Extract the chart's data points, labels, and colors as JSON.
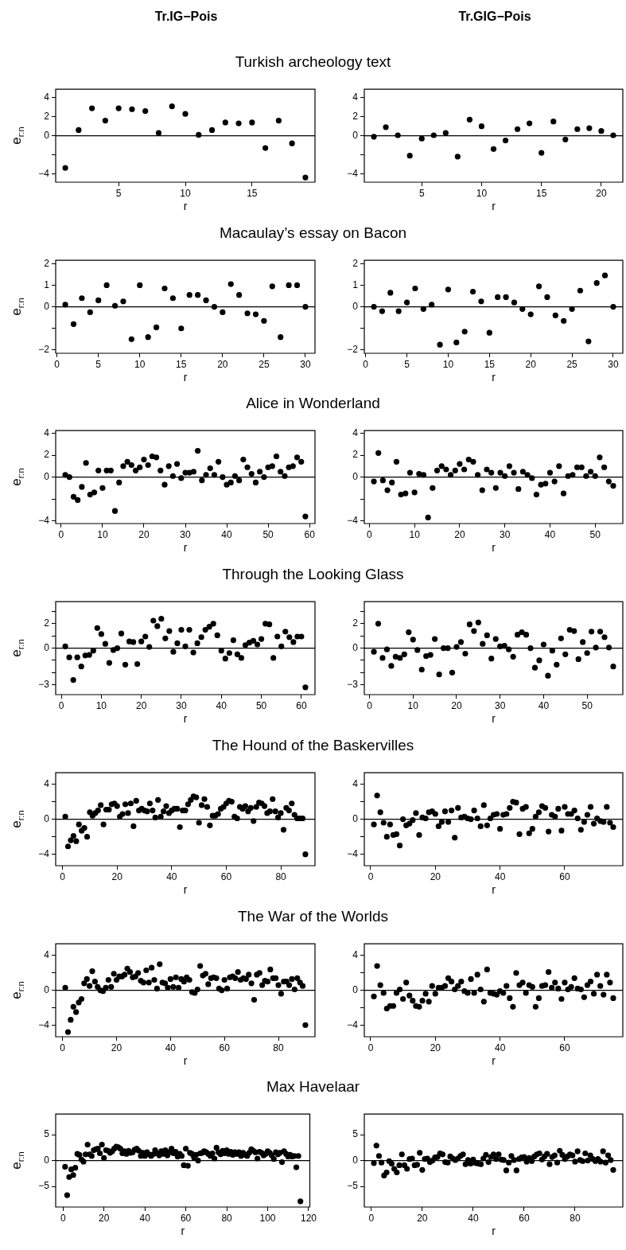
{
  "chart_data": [
    {
      "type": "scatter",
      "title": "Turkish archeology text",
      "subtitle": "Tr.IG−Pois",
      "xlabel": "r",
      "ylabel": "e$_{r:n}$",
      "color": "#000000",
      "marker": "circle",
      "xlim": [
        0.28,
        19.72
      ],
      "xticks": [
        5,
        10,
        15
      ],
      "ylim": [
        -4.9,
        4.9
      ],
      "yticks": [
        -4,
        {
          "value": -2,
          "label": null
        },
        0,
        2,
        4
      ],
      "ref_lines": [
        {
          "axis": "y",
          "value": 0
        }
      ],
      "x": [
        1,
        2,
        3,
        4,
        5,
        6,
        7,
        8,
        9,
        10,
        11,
        12,
        13,
        14,
        15,
        16,
        17,
        18,
        19
      ],
      "values": [
        -3.4,
        0.6,
        2.9,
        1.6,
        2.9,
        2.8,
        2.6,
        0.3,
        3.1,
        2.3,
        0.1,
        0.6,
        1.4,
        1.3,
        1.4,
        -1.3,
        1.6,
        -0.8,
        -4.4
      ]
    },
    {
      "type": "scatter",
      "subtitle": "Tr.GIG−Pois",
      "xlabel": "r",
      "color": "#000000",
      "marker": "circle",
      "xlim": [
        0.2,
        21.8
      ],
      "xticks": [
        5,
        10,
        15,
        20
      ],
      "ylim": [
        -4.9,
        4.9
      ],
      "yticks": [
        -4,
        {
          "value": -2,
          "label": null
        },
        0,
        2,
        4
      ],
      "ref_lines": [
        {
          "axis": "y",
          "value": 0
        }
      ],
      "x": [
        1,
        2,
        3,
        4,
        5,
        6,
        7,
        8,
        9,
        10,
        11,
        12,
        13,
        14,
        15,
        16,
        17,
        18,
        19,
        20,
        21
      ],
      "values": [
        -0.1,
        0.9,
        0.05,
        -2.1,
        -0.3,
        0.05,
        0.3,
        -2.2,
        1.7,
        1.0,
        -1.4,
        -0.5,
        0.7,
        1.3,
        -1.8,
        1.5,
        -0.4,
        0.7,
        0.8,
        0.5,
        0.05
      ]
    },
    {
      "type": "scatter",
      "title": "Macaulay’s essay on Bacon",
      "xlabel": "r",
      "ylabel": "e$_{r:n}$",
      "color": "#000000",
      "marker": "circle",
      "xlim": [
        -0.16,
        31.16
      ],
      "xticks": [
        0,
        5,
        10,
        15,
        20,
        25,
        30
      ],
      "ylim": [
        -2.15,
        2.15
      ],
      "yticks": [
        -2,
        {
          "value": -1,
          "label": null
        },
        0,
        1,
        2
      ],
      "ref_lines": [
        {
          "axis": "y",
          "value": 0
        }
      ],
      "x": [
        1,
        2,
        3,
        4,
        5,
        6,
        7,
        8,
        9,
        10,
        11,
        12,
        13,
        14,
        15,
        16,
        17,
        18,
        19,
        20,
        21,
        22,
        23,
        24,
        25,
        26,
        27,
        28,
        29,
        30
      ],
      "values": [
        0.1,
        -0.8,
        0.4,
        -0.25,
        0.3,
        1.0,
        0.05,
        0.25,
        -1.5,
        1.0,
        -1.4,
        -0.95,
        0.85,
        0.4,
        -1.0,
        0.55,
        0.55,
        0.3,
        0.0,
        -0.25,
        1.05,
        0.55,
        -0.3,
        -0.35,
        -0.65,
        0.95,
        -1.4,
        1.0,
        1.0,
        0.0
      ]
    },
    {
      "type": "scatter",
      "xlabel": "r",
      "color": "#000000",
      "marker": "circle",
      "xlim": [
        -0.16,
        31.16
      ],
      "xticks": [
        0,
        5,
        10,
        15,
        20,
        25,
        30
      ],
      "ylim": [
        -2.15,
        2.15
      ],
      "yticks": [
        -2,
        {
          "value": -1,
          "label": null
        },
        0,
        1,
        2
      ],
      "ref_lines": [
        {
          "axis": "y",
          "value": 0
        }
      ],
      "x": [
        1,
        2,
        3,
        4,
        5,
        6,
        7,
        8,
        9,
        10,
        11,
        12,
        13,
        14,
        15,
        16,
        17,
        18,
        19,
        20,
        21,
        22,
        23,
        24,
        25,
        26,
        27,
        28,
        29,
        30
      ],
      "values": [
        0.0,
        -0.2,
        0.65,
        -0.2,
        0.2,
        0.85,
        -0.1,
        0.1,
        -1.75,
        0.8,
        -1.65,
        -1.15,
        0.7,
        0.25,
        -1.2,
        0.45,
        0.45,
        0.2,
        -0.1,
        -0.35,
        0.95,
        0.45,
        -0.4,
        -0.65,
        -0.1,
        0.75,
        -1.6,
        1.1,
        1.45,
        0.0
      ]
    },
    {
      "type": "scatter",
      "title": "Alice in Wonderland",
      "xlabel": "r",
      "ylabel": "e$_{r:n}$",
      "color": "#000000",
      "marker": "circle",
      "xlim": [
        -1.32,
        61.32
      ],
      "xticks": [
        0,
        10,
        20,
        30,
        40,
        50,
        60
      ],
      "ylim": [
        -4.25,
        4.25
      ],
      "yticks": [
        -4,
        {
          "value": -2,
          "label": null
        },
        0,
        2,
        4
      ],
      "ref_lines": [
        {
          "axis": "y",
          "value": 0
        }
      ],
      "x": [
        1,
        2,
        3,
        4,
        5,
        6,
        7,
        8,
        9,
        10,
        11,
        12,
        13,
        14,
        15,
        16,
        17,
        18,
        19,
        20,
        21,
        22,
        23,
        24,
        25,
        26,
        27,
        28,
        29,
        30,
        31,
        32,
        33,
        34,
        35,
        36,
        37,
        38,
        39,
        40,
        41,
        42,
        43,
        44,
        45,
        46,
        47,
        48,
        49,
        50,
        51,
        52,
        53,
        54,
        55,
        56,
        57,
        58,
        59
      ],
      "values": [
        0.2,
        0.0,
        -1.8,
        -2.1,
        -0.9,
        1.3,
        -1.6,
        -1.4,
        0.6,
        -1.0,
        0.6,
        0.6,
        -3.1,
        -0.5,
        1.0,
        1.4,
        1.1,
        0.6,
        0.9,
        1.6,
        1.1,
        1.9,
        1.8,
        0.6,
        -0.7,
        1.0,
        0.1,
        1.2,
        -0.1,
        0.4,
        0.4,
        0.5,
        2.4,
        -0.3,
        0.2,
        0.8,
        0.2,
        1.4,
        0.0,
        -0.7,
        -0.5,
        0.1,
        -0.3,
        1.6,
        0.9,
        0.3,
        -0.5,
        0.5,
        0.0,
        0.9,
        1.0,
        1.9,
        0.5,
        0.1,
        0.9,
        1.0,
        1.8,
        1.4,
        -3.6
      ]
    },
    {
      "type": "scatter",
      "xlabel": "r",
      "color": "#000000",
      "marker": "circle",
      "xlim": [
        -1.12,
        56.12
      ],
      "xticks": [
        0,
        10,
        20,
        30,
        40,
        50
      ],
      "ylim": [
        -4.25,
        4.25
      ],
      "yticks": [
        -4,
        {
          "value": -2,
          "label": null
        },
        0,
        2,
        4
      ],
      "ref_lines": [
        {
          "axis": "y",
          "value": 0
        }
      ],
      "x": [
        1,
        2,
        3,
        4,
        5,
        6,
        7,
        8,
        9,
        10,
        11,
        12,
        13,
        14,
        15,
        16,
        17,
        18,
        19,
        20,
        21,
        22,
        23,
        24,
        25,
        26,
        27,
        28,
        29,
        30,
        31,
        32,
        33,
        34,
        35,
        36,
        37,
        38,
        39,
        40,
        41,
        42,
        43,
        44,
        45,
        46,
        47,
        48,
        49,
        50,
        51,
        52,
        53,
        54
      ],
      "values": [
        -0.4,
        2.2,
        -0.3,
        -1.2,
        -0.5,
        1.4,
        -1.6,
        -1.5,
        0.4,
        -1.4,
        0.3,
        0.2,
        -3.7,
        -1.0,
        0.6,
        1.0,
        0.7,
        0.2,
        0.6,
        1.2,
        0.7,
        1.6,
        1.4,
        0.2,
        -1.2,
        0.7,
        0.4,
        -1.0,
        0.4,
        0.1,
        1.0,
        0.4,
        -1.1,
        0.5,
        0.2,
        -0.1,
        -1.6,
        -0.7,
        -0.6,
        0.4,
        -0.4,
        1.0,
        -1.5,
        0.1,
        0.2,
        0.9,
        0.9,
        0.1,
        0.5,
        0.1,
        1.8,
        0.9,
        -0.4,
        -0.8
      ]
    },
    {
      "type": "scatter",
      "title": "Through the Looking Glass",
      "xlabel": "r",
      "ylabel": "e$_{r:n}$",
      "color": "#000000",
      "marker": "circle",
      "xlim": [
        -1.4,
        63.4
      ],
      "xticks": [
        0,
        10,
        20,
        30,
        40,
        50,
        60
      ],
      "ylim": [
        -3.8,
        3.8
      ],
      "yticks": [
        -3,
        {
          "value": -2,
          "label": null
        },
        {
          "value": -1,
          "label": null
        },
        0,
        {
          "value": 1,
          "label": null
        },
        2,
        {
          "value": 3,
          "label": null
        }
      ],
      "ref_lines": [
        {
          "axis": "y",
          "value": 0
        }
      ],
      "x": [
        1,
        2,
        3,
        4,
        5,
        6,
        7,
        8,
        9,
        10,
        11,
        12,
        13,
        14,
        15,
        16,
        17,
        18,
        19,
        20,
        21,
        22,
        23,
        24,
        25,
        26,
        27,
        28,
        29,
        30,
        31,
        32,
        33,
        34,
        35,
        36,
        37,
        38,
        39,
        40,
        41,
        42,
        43,
        44,
        45,
        46,
        47,
        48,
        49,
        50,
        51,
        52,
        53,
        54,
        55,
        56,
        57,
        58,
        59,
        60,
        61
      ],
      "values": [
        0.15,
        -0.75,
        -2.6,
        -0.75,
        -1.5,
        -0.6,
        -0.55,
        -0.2,
        1.65,
        1.15,
        0.35,
        -1.2,
        -0.15,
        0.0,
        1.2,
        -1.35,
        0.55,
        0.5,
        -1.3,
        0.55,
        0.95,
        0.1,
        2.25,
        1.8,
        2.4,
        0.8,
        1.4,
        -0.3,
        0.4,
        1.5,
        0.15,
        1.5,
        -0.35,
        0.4,
        0.9,
        1.5,
        1.75,
        2.0,
        1.05,
        -0.2,
        -0.85,
        -0.4,
        0.65,
        -0.5,
        -0.8,
        0.25,
        0.45,
        0.6,
        0.3,
        0.75,
        2.0,
        1.95,
        -0.8,
        0.95,
        0.15,
        1.35,
        0.9,
        0.5,
        0.95,
        0.95,
        -3.2
      ]
    },
    {
      "type": "scatter",
      "xlabel": "r",
      "color": "#000000",
      "marker": "circle",
      "xlim": [
        -1.2,
        58.2
      ],
      "xticks": [
        0,
        10,
        20,
        30,
        40,
        50
      ],
      "ylim": [
        -3.8,
        3.8
      ],
      "yticks": [
        -3,
        {
          "value": -2,
          "label": null
        },
        {
          "value": -1,
          "label": null
        },
        0,
        {
          "value": 1,
          "label": null
        },
        2,
        {
          "value": 3,
          "label": null
        }
      ],
      "ref_lines": [
        {
          "axis": "y",
          "value": 0
        }
      ],
      "x": [
        1,
        2,
        3,
        4,
        5,
        6,
        7,
        8,
        9,
        10,
        11,
        12,
        13,
        14,
        15,
        16,
        17,
        18,
        19,
        20,
        21,
        22,
        23,
        24,
        25,
        26,
        27,
        28,
        29,
        30,
        31,
        32,
        33,
        34,
        35,
        36,
        37,
        38,
        39,
        40,
        41,
        42,
        43,
        44,
        45,
        46,
        47,
        48,
        49,
        50,
        51,
        52,
        53,
        54,
        55,
        56
      ],
      "values": [
        -0.3,
        2.0,
        -0.8,
        -0.1,
        -1.45,
        -0.7,
        -0.8,
        -0.5,
        1.3,
        0.7,
        -0.15,
        -1.75,
        -0.65,
        -0.55,
        0.75,
        -2.15,
        0.0,
        0.0,
        -2.0,
        0.1,
        0.5,
        -0.45,
        1.95,
        1.4,
        2.1,
        0.35,
        1.05,
        -0.85,
        0.75,
        0.15,
        0.2,
        -0.1,
        -0.7,
        1.1,
        1.3,
        1.1,
        0.0,
        -1.6,
        -1.0,
        0.3,
        -2.25,
        -0.2,
        -1.35,
        0.8,
        -0.5,
        1.5,
        1.4,
        -0.9,
        0.5,
        -0.4,
        1.35,
        0.05,
        1.35,
        0.9,
        0.05,
        -1.5
      ]
    },
    {
      "type": "scatter",
      "title": "The Hound of the Baskervilles",
      "xlabel": "r",
      "ylabel": "e$_{r:n}$",
      "color": "#000000",
      "marker": "circle",
      "xlim": [
        -2.52,
        92.52
      ],
      "xticks": [
        0,
        20,
        40,
        60,
        80
      ],
      "ylim": [
        -5.3,
        5.3
      ],
      "yticks": [
        -4,
        {
          "value": -2,
          "label": null
        },
        0,
        {
          "value": 2,
          "label": null
        },
        4
      ],
      "ref_lines": [
        {
          "axis": "y",
          "value": 0
        }
      ],
      "x": [
        1,
        2,
        3,
        4,
        5,
        6,
        7,
        8,
        9,
        10,
        11,
        12,
        13,
        14,
        15,
        16,
        17,
        18,
        19,
        20,
        21,
        22,
        23,
        24,
        25,
        26,
        27,
        28,
        29,
        30,
        31,
        32,
        33,
        34,
        35,
        36,
        37,
        38,
        39,
        40,
        41,
        42,
        43,
        44,
        45,
        46,
        47,
        48,
        49,
        50,
        51,
        52,
        53,
        54,
        55,
        56,
        57,
        58,
        59,
        60,
        61,
        62,
        63,
        64,
        65,
        66,
        67,
        68,
        69,
        70,
        71,
        72,
        73,
        74,
        75,
        76,
        77,
        78,
        79,
        80,
        81,
        82,
        83,
        84,
        85,
        86,
        87,
        88,
        89
      ],
      "values": [
        0.3,
        -3.1,
        -2.4,
        -1.9,
        -2.5,
        -0.6,
        -1.3,
        -1.0,
        -2.0,
        0.8,
        0.4,
        0.7,
        1.0,
        1.6,
        -0.6,
        1.1,
        1.1,
        1.7,
        1.8,
        1.5,
        0.3,
        0.6,
        1.7,
        0.7,
        1.8,
        -0.8,
        2.1,
        1.0,
        1.2,
        1.0,
        0.9,
        1.8,
        1.0,
        0.2,
        2.2,
        0.3,
        0.9,
        1.5,
        0.7,
        1.0,
        1.2,
        1.2,
        -0.9,
        1.0,
        1.0,
        1.7,
        2.2,
        2.6,
        2.5,
        -0.4,
        1.6,
        2.3,
        1.4,
        -0.7,
        0.4,
        0.4,
        0.6,
        1.2,
        1.4,
        1.8,
        2.1,
        2.0,
        0.3,
        0.1,
        1.4,
        1.2,
        1.5,
        0.9,
        1.3,
        -0.2,
        1.4,
        1.9,
        1.8,
        1.5,
        0.7,
        0.9,
        2.3,
        0.9,
        0.2,
        0.7,
        -1.2,
        1.3,
        1.0,
        1.8,
        0.5,
        0.1,
        0.1,
        0.1,
        -4.0
      ]
    },
    {
      "type": "scatter",
      "xlabel": "r",
      "color": "#000000",
      "marker": "circle",
      "xlim": [
        -1.96,
        77.96
      ],
      "xticks": [
        0,
        20,
        40,
        60
      ],
      "ylim": [
        -5.3,
        5.3
      ],
      "yticks": [
        -4,
        {
          "value": -2,
          "label": null
        },
        0,
        {
          "value": 2,
          "label": null
        },
        4
      ],
      "ref_lines": [
        {
          "axis": "y",
          "value": 0
        }
      ],
      "x": [
        1,
        2,
        3,
        4,
        5,
        6,
        7,
        8,
        9,
        10,
        11,
        12,
        13,
        14,
        15,
        16,
        17,
        18,
        19,
        20,
        21,
        22,
        23,
        24,
        25,
        26,
        27,
        28,
        29,
        30,
        31,
        32,
        33,
        34,
        35,
        36,
        37,
        38,
        39,
        40,
        41,
        42,
        43,
        44,
        45,
        46,
        47,
        48,
        49,
        50,
        51,
        52,
        53,
        54,
        55,
        56,
        57,
        58,
        59,
        60,
        61,
        62,
        63,
        64,
        65,
        66,
        67,
        68,
        69,
        70,
        71,
        72,
        73,
        74,
        75
      ],
      "values": [
        -0.6,
        2.7,
        0.8,
        -0.4,
        -2.0,
        -0.6,
        -1.8,
        -1.7,
        -3.0,
        0.0,
        -0.7,
        -0.5,
        -0.1,
        0.7,
        -1.8,
        0.2,
        0.1,
        0.8,
        0.9,
        0.6,
        -0.8,
        -0.3,
        0.9,
        -0.3,
        1.0,
        -2.1,
        1.3,
        0.2,
        0.3,
        0.1,
        0.0,
        1.0,
        0.1,
        -0.8,
        1.6,
        -0.7,
        0.1,
        0.5,
        0.6,
        -1.1,
        0.5,
        0.6,
        1.3,
        2.0,
        1.9,
        -1.7,
        1.2,
        1.4,
        -1.6,
        -1.1,
        0.3,
        0.8,
        1.5,
        1.3,
        -1.4,
        0.5,
        0.3,
        1.2,
        -1.3,
        1.4,
        0.6,
        0.6,
        1.0,
        0.1,
        -1.2,
        -0.3,
        0.5,
        1.4,
        -0.5,
        0.1,
        -0.2,
        -0.3,
        1.4,
        -0.4,
        -0.9
      ]
    },
    {
      "type": "scatter",
      "title": "The War of the Worlds",
      "xlabel": "r",
      "ylabel": "e$_{r:n}$",
      "color": "#000000",
      "marker": "circle",
      "xlim": [
        -2.56,
        93.56
      ],
      "xticks": [
        0,
        20,
        40,
        60,
        80
      ],
      "ylim": [
        -5.35,
        5.35
      ],
      "yticks": [
        -4,
        {
          "value": -2,
          "label": null
        },
        0,
        {
          "value": 2,
          "label": null
        },
        4
      ],
      "ref_lines": [
        {
          "axis": "y",
          "value": 0
        }
      ],
      "x": [
        1,
        2,
        3,
        4,
        5,
        6,
        7,
        8,
        9,
        10,
        11,
        12,
        13,
        14,
        15,
        16,
        17,
        18,
        19,
        20,
        21,
        22,
        23,
        24,
        25,
        26,
        27,
        28,
        29,
        30,
        31,
        32,
        33,
        34,
        35,
        36,
        37,
        38,
        39,
        40,
        41,
        42,
        43,
        44,
        45,
        46,
        47,
        48,
        49,
        50,
        51,
        52,
        53,
        54,
        55,
        56,
        57,
        58,
        59,
        60,
        61,
        62,
        63,
        64,
        65,
        66,
        67,
        68,
        69,
        70,
        71,
        72,
        73,
        74,
        75,
        76,
        77,
        78,
        79,
        80,
        81,
        82,
        83,
        84,
        85,
        86,
        87,
        88,
        89,
        90
      ],
      "values": [
        0.3,
        -4.8,
        -3.4,
        -1.9,
        -2.5,
        -1.4,
        -1.0,
        0.8,
        1.3,
        0.5,
        2.2,
        1.0,
        0.4,
        0.0,
        -0.1,
        0.3,
        1.2,
        0.4,
        1.9,
        1.2,
        1.6,
        1.6,
        1.8,
        2.5,
        2.1,
        1.5,
        1.6,
        2.0,
        1.1,
        0.9,
        2.3,
        0.9,
        2.6,
        1.2,
        0.2,
        3.0,
        0.9,
        0.8,
        0.3,
        1.3,
        0.4,
        1.5,
        0.3,
        1.3,
        1.0,
        1.5,
        1.2,
        -0.2,
        -0.3,
        0.1,
        2.8,
        1.7,
        1.9,
        0.7,
        1.4,
        1.5,
        1.4,
        0.2,
        0.0,
        1.2,
        0.2,
        1.5,
        1.6,
        1.4,
        2.1,
        1.2,
        1.4,
        1.3,
        1.8,
        0.8,
        -1.1,
        1.8,
        2.0,
        0.6,
        1.1,
        1.0,
        2.4,
        1.4,
        1.4,
        0.6,
        -0.4,
        1.0,
        1.0,
        0.6,
        1.3,
        0.1,
        1.4,
        0.9,
        0.5,
        -4.0
      ]
    },
    {
      "type": "scatter",
      "xlabel": "r",
      "color": "#000000",
      "marker": "circle",
      "xlim": [
        -1.96,
        77.96
      ],
      "xticks": [
        0,
        20,
        40,
        60
      ],
      "ylim": [
        -5.35,
        5.35
      ],
      "yticks": [
        -4,
        {
          "value": -2,
          "label": null
        },
        0,
        {
          "value": 2,
          "label": null
        },
        4
      ],
      "ref_lines": [
        {
          "axis": "y",
          "value": 0
        }
      ],
      "x": [
        1,
        2,
        3,
        4,
        5,
        6,
        7,
        8,
        9,
        10,
        11,
        12,
        13,
        14,
        15,
        16,
        17,
        18,
        19,
        20,
        21,
        22,
        23,
        24,
        25,
        26,
        27,
        28,
        29,
        30,
        31,
        32,
        33,
        34,
        35,
        36,
        37,
        38,
        39,
        40,
        41,
        42,
        43,
        44,
        45,
        46,
        47,
        48,
        49,
        50,
        51,
        52,
        53,
        54,
        55,
        56,
        57,
        58,
        59,
        60,
        61,
        62,
        63,
        64,
        65,
        66,
        67,
        68,
        69,
        70,
        71,
        72,
        73,
        74,
        75
      ],
      "values": [
        -0.7,
        2.8,
        0.6,
        -0.3,
        -2.1,
        -1.8,
        -1.8,
        -0.3,
        0.1,
        -1.0,
        0.9,
        -0.6,
        -1.2,
        -1.8,
        -1.9,
        -1.2,
        -0.4,
        -1.3,
        0.5,
        -0.4,
        0.3,
        0.3,
        0.5,
        1.4,
        1.0,
        0.1,
        0.5,
        1.0,
        -0.1,
        -0.3,
        1.3,
        -0.3,
        1.8,
        0.1,
        -1.3,
        2.4,
        -0.3,
        -0.4,
        -0.5,
        -0.1,
        -0.3,
        0.5,
        -0.9,
        -1.9,
        2.0,
        0.6,
        0.9,
        -0.3,
        0.6,
        0.4,
        -1.9,
        -0.9,
        0.5,
        0.6,
        2.1,
        0.3,
        0.9,
        0.2,
        -1.0,
        0.9,
        0.1,
        0.4,
        1.4,
        0.2,
        0.1,
        -0.8,
        0.6,
        1.0,
        -0.4,
        1.8,
        0.5,
        -0.5,
        1.8,
        0.9,
        -0.9
      ]
    },
    {
      "type": "scatter",
      "title": "Max Havelaar",
      "xlabel": "r",
      "ylabel": "e$_{r:n}$",
      "color": "#000000",
      "marker": "circle",
      "xlim": [
        -3.6,
        120.6
      ],
      "xticks": [
        0,
        20,
        40,
        60,
        80,
        100,
        120
      ],
      "ylim": [
        -9,
        9
      ],
      "yticks": [
        -5,
        0,
        5
      ],
      "ref_lines": [
        {
          "axis": "y",
          "value": 0
        }
      ],
      "x": [
        1,
        2,
        3,
        4,
        5,
        6,
        7,
        8,
        9,
        10,
        11,
        12,
        13,
        14,
        15,
        16,
        17,
        18,
        19,
        20,
        21,
        22,
        23,
        24,
        25,
        26,
        27,
        28,
        29,
        30,
        31,
        32,
        33,
        34,
        35,
        36,
        37,
        38,
        39,
        40,
        41,
        42,
        43,
        44,
        45,
        46,
        47,
        48,
        49,
        50,
        51,
        52,
        53,
        54,
        55,
        56,
        57,
        58,
        59,
        60,
        61,
        62,
        63,
        64,
        65,
        66,
        67,
        68,
        69,
        70,
        71,
        72,
        73,
        74,
        75,
        76,
        77,
        78,
        79,
        80,
        81,
        82,
        83,
        84,
        85,
        86,
        87,
        88,
        89,
        90,
        91,
        92,
        93,
        94,
        95,
        96,
        97,
        98,
        99,
        100,
        101,
        102,
        103,
        104,
        105,
        106,
        107,
        108,
        109,
        110,
        111,
        112,
        113,
        114,
        115,
        116
      ],
      "values": [
        -1.2,
        -6.7,
        -3.2,
        -1.7,
        -2.8,
        -1.4,
        1.3,
        1.1,
        0.2,
        -0.2,
        1.2,
        3.1,
        1.2,
        0.9,
        2.0,
        2.2,
        2.3,
        1.4,
        3.1,
        0.5,
        2.0,
        1.9,
        1.5,
        1.8,
        2.3,
        2.7,
        2.6,
        2.3,
        1.4,
        1.8,
        1.3,
        1.9,
        1.5,
        1.6,
        2.1,
        2.3,
        1.9,
        0.9,
        1.5,
        0.9,
        1.6,
        1.2,
        0.9,
        1.2,
        2.0,
        1.4,
        1.0,
        1.8,
        1.3,
        2.0,
        1.0,
        1.6,
        2.3,
        1.4,
        1.7,
        0.8,
        1.3,
        0.9,
        -0.9,
        2.3,
        -1.0,
        1.5,
        1.3,
        0.6,
        1.1,
        0.0,
        1.4,
        1.5,
        1.8,
        1.6,
        1.3,
        0.9,
        1.4,
        0.4,
        2.5,
        1.6,
        1.2,
        1.9,
        1.4,
        2.0,
        1.3,
        1.7,
        1.1,
        1.6,
        1.3,
        1.6,
        0.9,
        1.5,
        1.1,
        0.9,
        1.5,
        2.2,
        1.9,
        1.6,
        0.4,
        1.7,
        1.5,
        1.0,
        1.3,
        1.8,
        1.5,
        1.0,
        0.3,
        1.6,
        1.2,
        1.5,
        -0.3,
        1.8,
        1.3,
        0.8,
        1.1,
        0.8,
        0.9,
        -1.3,
        0.9,
        -7.9
      ]
    },
    {
      "type": "scatter",
      "xlabel": "r",
      "color": "#000000",
      "marker": "circle",
      "xlim": [
        -2.76,
        98.76
      ],
      "xticks": [
        0,
        20,
        40,
        60,
        80
      ],
      "ylim": [
        -9,
        9
      ],
      "yticks": [
        -5,
        0,
        5
      ],
      "ref_lines": [
        {
          "axis": "y",
          "value": 0
        }
      ],
      "x": [
        1,
        2,
        3,
        4,
        5,
        6,
        7,
        8,
        9,
        10,
        11,
        12,
        13,
        14,
        15,
        16,
        17,
        18,
        19,
        20,
        21,
        22,
        23,
        24,
        25,
        26,
        27,
        28,
        29,
        30,
        31,
        32,
        33,
        34,
        35,
        36,
        37,
        38,
        39,
        40,
        41,
        42,
        43,
        44,
        45,
        46,
        47,
        48,
        49,
        50,
        51,
        52,
        53,
        54,
        55,
        56,
        57,
        58,
        59,
        60,
        61,
        62,
        63,
        64,
        65,
        66,
        67,
        68,
        69,
        70,
        71,
        72,
        73,
        74,
        75,
        76,
        77,
        78,
        79,
        80,
        81,
        82,
        83,
        84,
        85,
        86,
        87,
        88,
        89,
        90,
        91,
        92,
        93,
        94,
        95
      ],
      "values": [
        -0.5,
        2.9,
        0.9,
        -0.4,
        -2.9,
        -2.3,
        -0.1,
        -0.6,
        -1.6,
        -2.3,
        -0.9,
        1.2,
        -0.9,
        -1.6,
        0.3,
        0.4,
        -0.9,
        -0.8,
        1.5,
        -1.8,
        0.3,
        0.4,
        -0.3,
        0.0,
        0.6,
        0.7,
        1.4,
        1.2,
        -0.3,
        -0.4,
        0.8,
        0.4,
        0.1,
        0.4,
        0.9,
        1.2,
        -0.7,
        0.1,
        -0.6,
        0.2,
        -0.5,
        -0.6,
        -0.7,
        0.4,
        1.1,
        -0.3,
        0.7,
        1.2,
        0.3,
        1.2,
        0.2,
        0.1,
        -1.9,
        -0.4,
        0.9,
        0.1,
        -1.9,
        0.3,
        0.6,
        0.7,
        -0.2,
        0.5,
        -0.1,
        0.8,
        1.2,
        1.4,
        0.2,
        0.8,
        1.3,
        -0.7,
        0.7,
        1.0,
        -0.4,
        1.9,
        1.1,
        0.3,
        0.8,
        1.2,
        1.0,
        -0.2,
        1.8,
        0.1,
        -0.1,
        1.4,
        0.0,
        1.0,
        0.3,
        -0.1,
        0.3,
        -0.2,
        1.8,
        -0.4,
        1.0,
        0.1,
        -1.8
      ]
    }
  ]
}
